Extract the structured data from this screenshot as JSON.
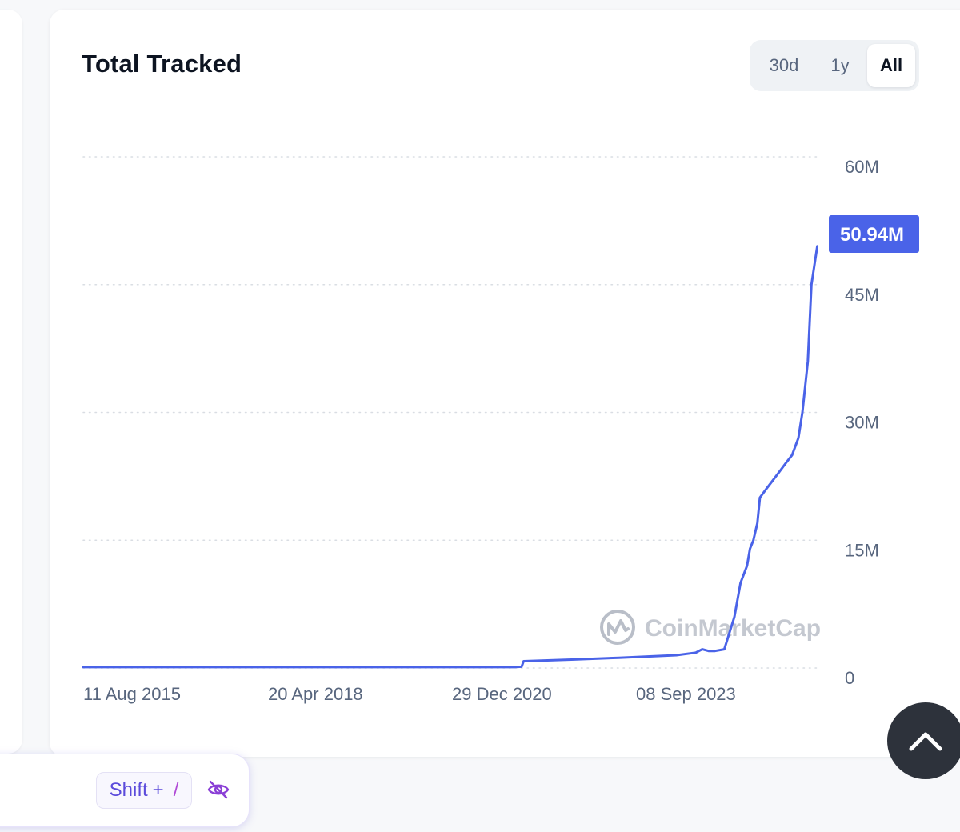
{
  "card": {
    "title": "Total Tracked",
    "ranges": [
      {
        "label": "30d",
        "active": false
      },
      {
        "label": "1y",
        "active": false
      },
      {
        "label": "All",
        "active": true
      }
    ]
  },
  "watermark": "CoinMarketCap",
  "shortcut": {
    "key": "Shift",
    "plus": "+",
    "slash": "/"
  },
  "colors": {
    "line": "#4a63e8",
    "current_value_badge": "#4a63e8",
    "scroll_top_button": "#2d323b",
    "shortcut_text": "#5b4bdb"
  },
  "icons": {
    "eye": "eye-off-icon",
    "scroll_top": "chevron-up-icon",
    "watermark_logo": "coinmarketcap-logo-icon"
  },
  "chart_data": {
    "type": "line",
    "current_value_label": "50.94M",
    "x_tick_labels": [
      "11 Aug 2015",
      "20 Apr 2018",
      "29 Dec 2020",
      "08 Sep 2023"
    ],
    "y_tick_labels": [
      "0",
      "15M",
      "30M",
      "45M",
      "60M"
    ],
    "y_ticks": [
      0,
      15000000,
      30000000,
      45000000,
      60000000
    ],
    "xlim": [
      "2015-08-11",
      "2025-03-10"
    ],
    "ylim": [
      0,
      60000000
    ],
    "grid": "horizontal-dotted",
    "series": [
      {
        "x": [
          "2015-08-11",
          "2017-01-01",
          "2018-06-01",
          "2019-06-01",
          "2020-06-01",
          "2021-03-20",
          "2021-04-25",
          "2021-05-05",
          "2022-01-01",
          "2022-08-01",
          "2023-05-01",
          "2023-08-01",
          "2023-09-01",
          "2023-10-01",
          "2023-11-01",
          "2023-12-15",
          "2024-02-01",
          "2024-03-01",
          "2024-04-01",
          "2024-04-15",
          "2024-05-01",
          "2024-05-20",
          "2024-06-01",
          "2024-07-01",
          "2024-08-01",
          "2024-09-01",
          "2024-10-01",
          "2024-11-01",
          "2024-12-01",
          "2024-12-20",
          "2025-01-15",
          "2025-02-01",
          "2025-03-01"
        ],
        "y": [
          100000,
          100000,
          100000,
          100000,
          100000,
          100000,
          150000,
          800000,
          1000000,
          1200000,
          1500000,
          1800000,
          2200000,
          2000000,
          2000000,
          2200000,
          6000000,
          10000000,
          12000000,
          14000000,
          15000000,
          17000000,
          20000000,
          21000000,
          22000000,
          23000000,
          24000000,
          25000000,
          27000000,
          30000000,
          36000000,
          45000000,
          49500000
        ]
      }
    ]
  }
}
